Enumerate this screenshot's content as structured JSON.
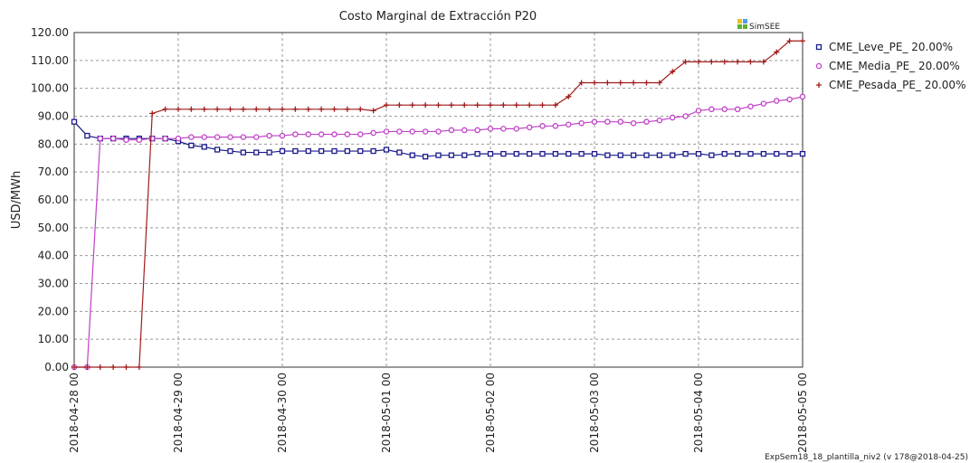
{
  "chart_data": {
    "type": "line",
    "title": "Costo Marginal de Extracción P20",
    "y_label": "USD/MWh",
    "logo": "SimSEE",
    "footer": "ExpSem18_18_plantilla_niv2 (v 178@2018-04-25)",
    "grid": true,
    "legend": "right",
    "x": [
      "2018-04-28 00",
      "2018-04-28 03",
      "2018-04-28 06",
      "2018-04-28 09",
      "2018-04-28 12",
      "2018-04-28 15",
      "2018-04-28 18",
      "2018-04-28 21",
      "2018-04-29 00",
      "2018-04-29 03",
      "2018-04-29 06",
      "2018-04-29 09",
      "2018-04-29 12",
      "2018-04-29 15",
      "2018-04-29 18",
      "2018-04-29 21",
      "2018-04-30 00",
      "2018-04-30 03",
      "2018-04-30 06",
      "2018-04-30 09",
      "2018-04-30 12",
      "2018-04-30 15",
      "2018-04-30 18",
      "2018-04-30 21",
      "2018-05-01 00",
      "2018-05-01 03",
      "2018-05-01 06",
      "2018-05-01 09",
      "2018-05-01 12",
      "2018-05-01 15",
      "2018-05-01 18",
      "2018-05-01 21",
      "2018-05-02 00",
      "2018-05-02 03",
      "2018-05-02 06",
      "2018-05-02 09",
      "2018-05-02 12",
      "2018-05-02 15",
      "2018-05-02 18",
      "2018-05-02 21",
      "2018-05-03 00",
      "2018-05-03 03",
      "2018-05-03 06",
      "2018-05-03 09",
      "2018-05-03 12",
      "2018-05-03 15",
      "2018-05-03 18",
      "2018-05-03 21",
      "2018-05-04 00",
      "2018-05-04 03",
      "2018-05-04 06",
      "2018-05-04 09",
      "2018-05-04 12",
      "2018-05-04 15",
      "2018-05-04 18",
      "2018-05-04 21",
      "2018-05-05 00"
    ],
    "xlim": [
      "2018-04-28 00",
      "2018-05-05 00"
    ],
    "xticks": [
      "2018-04-28 00",
      "2018-04-29 00",
      "2018-04-30 00",
      "2018-05-01 00",
      "2018-05-02 00",
      "2018-05-03 00",
      "2018-05-04 00",
      "2018-05-05 00"
    ],
    "ylim": [
      0,
      120
    ],
    "yticks": [
      {
        "value": 0,
        "label": "0.00"
      },
      {
        "value": 10,
        "label": "10.00"
      },
      {
        "value": 20,
        "label": "20.00"
      },
      {
        "value": 30,
        "label": "30.00"
      },
      {
        "value": 40,
        "label": "40.00"
      },
      {
        "value": 50,
        "label": "50.00"
      },
      {
        "value": 60,
        "label": "60.00"
      },
      {
        "value": 70,
        "label": "70.00"
      },
      {
        "value": 80,
        "label": "80.00"
      },
      {
        "value": 90,
        "label": "90.00"
      },
      {
        "value": 100,
        "label": "100.00"
      },
      {
        "value": 110,
        "label": "110.00"
      },
      {
        "value": 120,
        "label": "120.00"
      }
    ],
    "series": [
      {
        "name": "CME_Leve_PE_ 20.00%",
        "color": "#1a1a8c",
        "marker": "square",
        "values": [
          88,
          83,
          82,
          82,
          82,
          82,
          82,
          82,
          81,
          79.5,
          79,
          78,
          77.5,
          77,
          77,
          77,
          77.5,
          77.5,
          77.5,
          77.5,
          77.5,
          77.5,
          77.5,
          77.5,
          78,
          77,
          76,
          75.5,
          76,
          76,
          76,
          76.5,
          76.5,
          76.5,
          76.5,
          76.5,
          76.5,
          76.5,
          76.5,
          76.5,
          76.5,
          76,
          76,
          76,
          76,
          76,
          76,
          76.5,
          76.5,
          76,
          76.5,
          76.5,
          76.5,
          76.5,
          76.5,
          76.5,
          76.5
        ]
      },
      {
        "name": "CME_Media_PE_ 20.00%",
        "color": "#c040c8",
        "marker": "circle",
        "values": [
          0,
          0,
          82,
          82,
          81.5,
          81.5,
          82,
          82,
          82,
          82.5,
          82.5,
          82.5,
          82.5,
          82.5,
          82.5,
          83,
          83,
          83.5,
          83.5,
          83.5,
          83.5,
          83.5,
          83.5,
          84,
          84.5,
          84.5,
          84.5,
          84.5,
          84.5,
          85,
          85,
          85,
          85.5,
          85.5,
          85.5,
          86,
          86.5,
          86.5,
          87,
          87.5,
          88,
          88,
          88,
          87.5,
          88,
          88.5,
          89.5,
          90,
          92,
          92.5,
          92.5,
          92.5,
          93.5,
          94.5,
          95.5,
          96,
          97
        ]
      },
      {
        "name": "CME_Pesada_PE_ 20.00%",
        "color": "#a01c1c",
        "marker": "plus",
        "values": [
          0,
          0,
          0,
          0,
          0,
          0,
          91,
          92.5,
          92.5,
          92.5,
          92.5,
          92.5,
          92.5,
          92.5,
          92.5,
          92.5,
          92.5,
          92.5,
          92.5,
          92.5,
          92.5,
          92.5,
          92.5,
          92,
          94,
          94,
          94,
          94,
          94,
          94,
          94,
          94,
          94,
          94,
          94,
          94,
          94,
          94,
          97,
          102,
          102,
          102,
          102,
          102,
          102,
          102,
          106,
          109.5,
          109.5,
          109.5,
          109.5,
          109.5,
          109.5,
          109.5,
          113,
          117,
          117
        ]
      }
    ]
  }
}
